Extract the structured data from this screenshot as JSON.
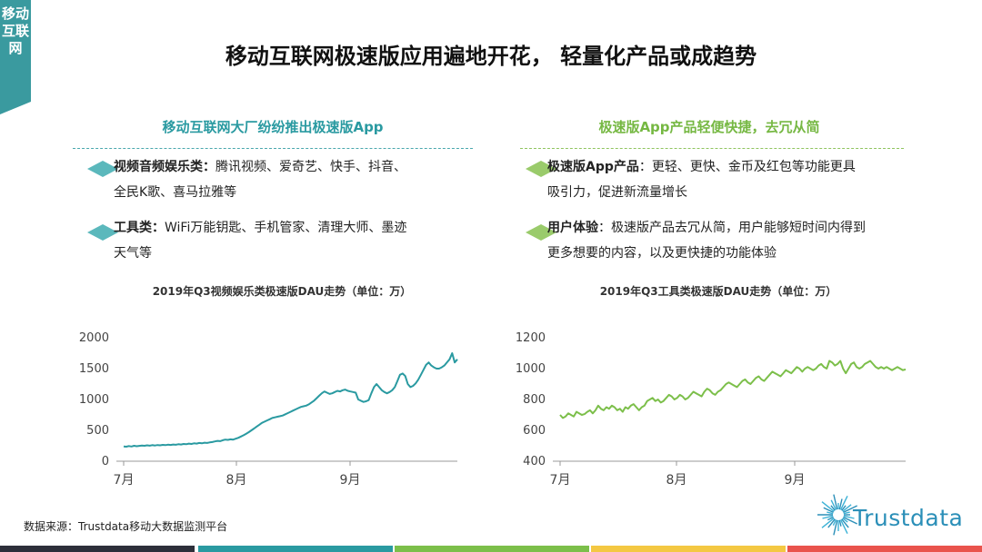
{
  "side_tab": "移动互联网",
  "title": "移动互联网极速版应用遍地开花， 轻量化产品或成趋势",
  "left": {
    "subtitle": "移动互联网大厂纷纷推出极速版App",
    "bullets": [
      {
        "head": "视频音频娱乐类：",
        "line1": "腾讯视频、爱奇艺、快手、抖音、",
        "line2": "全民K歌、喜马拉雅等"
      },
      {
        "head": "工具类：",
        "line1": "WiFi万能钥匙、手机管家、清理大师、墨迹",
        "line2": "天气等"
      }
    ]
  },
  "right": {
    "subtitle": "极速版App产品轻便快捷，去冗从简",
    "bullets": [
      {
        "head": "极速版App产品",
        "line1": "：更轻、更快、金币及红包等功能更具",
        "line2": "吸引力，促进新流量增长"
      },
      {
        "head": "用户体验",
        "line1": "：极速版产品去冗从简，用户能够短时间内得到",
        "line2": "更多想要的内容，以及更快捷的功能体验"
      }
    ]
  },
  "colors": {
    "teal": "#2a9aa1",
    "green": "#7cbf4a"
  },
  "chart_data": [
    {
      "type": "line",
      "title": "2019年Q3视频娱乐类极速版DAU走势（单位：万）",
      "x_ticks": [
        "7月",
        "8月",
        "9月"
      ],
      "ylim": [
        0,
        2000
      ],
      "y_ticks": [
        "0",
        "500",
        "1000",
        "1500",
        "2000"
      ],
      "grid": false,
      "series": [
        {
          "color": "#2a9aa1",
          "values": [
            240,
            235,
            245,
            238,
            250,
            242,
            248,
            255,
            250,
            258,
            252,
            260,
            255,
            262,
            258,
            265,
            260,
            268,
            263,
            270,
            266,
            275,
            270,
            280,
            275,
            285,
            280,
            290,
            285,
            295,
            290,
            300,
            295,
            305,
            310,
            320,
            330,
            325,
            340,
            350,
            345,
            355,
            350,
            365,
            380,
            400,
            420,
            445,
            470,
            500,
            530,
            560,
            590,
            620,
            640,
            660,
            680,
            700,
            710,
            720,
            730,
            740,
            760,
            780,
            800,
            820,
            840,
            860,
            880,
            890,
            900,
            920,
            950,
            980,
            1020,
            1060,
            1100,
            1130,
            1110,
            1090,
            1100,
            1120,
            1140,
            1130,
            1150,
            1160,
            1140,
            1130,
            1120,
            1110,
            1000,
            980,
            960,
            970,
            990,
            1100,
            1200,
            1250,
            1200,
            1150,
            1120,
            1100,
            1120,
            1150,
            1200,
            1300,
            1400,
            1420,
            1380,
            1250,
            1200,
            1220,
            1260,
            1320,
            1400,
            1480,
            1560,
            1600,
            1550,
            1520,
            1500,
            1500,
            1520,
            1550,
            1600,
            1650,
            1750,
            1600,
            1650
          ]
        }
      ]
    },
    {
      "type": "line",
      "title": "2019年Q3工具类极速版DAU走势（单位：万）",
      "x_ticks": [
        "7月",
        "8月",
        "9月"
      ],
      "ylim": [
        400,
        1200
      ],
      "y_ticks": [
        "400",
        "600",
        "800",
        "1000",
        "1200"
      ],
      "grid": false,
      "series": [
        {
          "color": "#7cbf4a",
          "values": [
            700,
            680,
            690,
            710,
            700,
            690,
            720,
            710,
            700,
            705,
            720,
            730,
            710,
            730,
            760,
            740,
            730,
            750,
            740,
            760,
            750,
            730,
            740,
            720,
            750,
            740,
            760,
            770,
            750,
            730,
            750,
            760,
            790,
            800,
            810,
            790,
            800,
            780,
            790,
            810,
            830,
            820,
            800,
            810,
            830,
            820,
            800,
            810,
            830,
            850,
            840,
            830,
            820,
            850,
            870,
            860,
            840,
            830,
            850,
            860,
            880,
            900,
            910,
            900,
            890,
            880,
            900,
            920,
            930,
            910,
            900,
            920,
            940,
            950,
            930,
            920,
            940,
            960,
            980,
            970,
            960,
            950,
            970,
            990,
            980,
            970,
            990,
            1010,
            1000,
            980,
            1000,
            1010,
            1000,
            990,
            1000,
            1020,
            1030,
            1010,
            1000,
            1050,
            1040,
            1020,
            1030,
            1050,
            1000,
            970,
            1000,
            1030,
            1040,
            1010,
            1000,
            1010,
            1030,
            1040,
            1050,
            1030,
            1010,
            1000,
            1010,
            1000,
            1010,
            1000,
            990,
            1000,
            1010,
            1000,
            990,
            995
          ]
        }
      ]
    }
  ],
  "source": "数据来源：Trustdata移动大数据监测平台",
  "logo": {
    "text": "Trustdata",
    "icon": "starburst-icon"
  },
  "footer_colors": [
    "#2d2f3a",
    "#2a9aa1",
    "#7cbf4a",
    "#f4c842",
    "#e9534c"
  ]
}
